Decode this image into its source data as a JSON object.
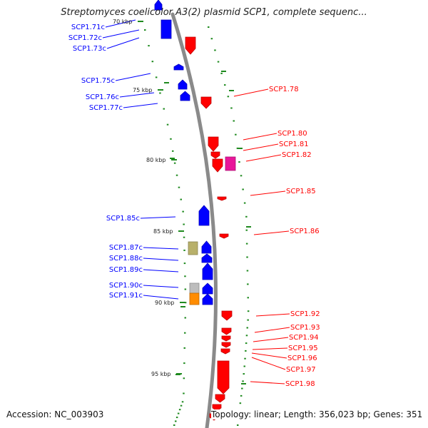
{
  "title": "Streptomyces coelicolor A3(2) plasmid SCP1, complete sequenc...",
  "footer": {
    "accession": "Accession: NC_003903",
    "topology": "Topology: linear; Length: 356,023 bp; Genes: 351"
  },
  "colors": {
    "backbone": "#8a8a8a",
    "forward_gene": "#ff0000",
    "reverse_gene": "#0000ff",
    "tick": "#1f8a1f",
    "magenta_feature": "#e8179a",
    "olive_feature": "#b8b06a",
    "gray_feature": "#bdbdbd",
    "orange_feature": "#ff8c00"
  },
  "kbp_markers": [
    "70 kbp",
    "75 kbp",
    "80 kbp",
    "85 kbp",
    "90 kbp",
    "95 kbp"
  ],
  "left_labels": [
    "SCP1.71c",
    "SCP1.72c",
    "SCP1.73c",
    "SCP1.75c",
    "SCP1.76c",
    "SCP1.77c",
    "SCP1.85c",
    "SCP1.87c",
    "SCP1.88c",
    "SCP1.89c",
    "SCP1.90c",
    "SCP1.91c"
  ],
  "right_labels": [
    "SCP1.78",
    "SCP1.80",
    "SCP1.81",
    "SCP1.82",
    "SCP1.85",
    "SCP1.86",
    "SCP1.92",
    "SCP1.93",
    "SCP1.94",
    "SCP1.95",
    "SCP1.96",
    "SCP1.97",
    "SCP1.98"
  ]
}
